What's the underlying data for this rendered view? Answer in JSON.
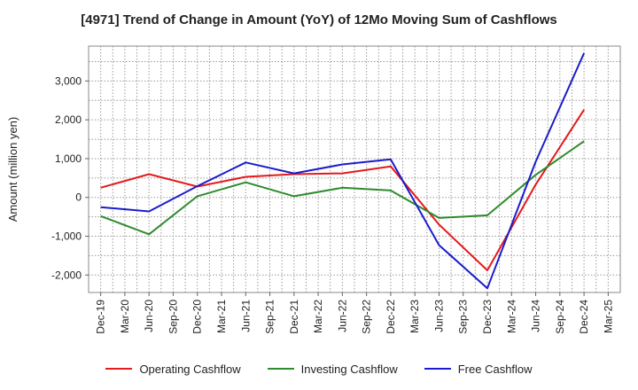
{
  "chart_data": {
    "type": "line",
    "title": "[4971]  Trend of Change in Amount (YoY) of 12Mo Moving Sum of Cashflows",
    "xlabel": "",
    "ylabel": "Amount (million yen)",
    "ylim": [
      -2450,
      3900
    ],
    "yticks": [
      -2000,
      -1000,
      0,
      1000,
      2000,
      3000
    ],
    "ytick_labels": [
      "-2,000",
      "-1,000",
      "0",
      "1,000",
      "2,000",
      "3,000"
    ],
    "x_labels": [
      "Dec-19",
      "Mar-20",
      "Jun-20",
      "Sep-20",
      "Dec-20",
      "Mar-21",
      "Jun-21",
      "Sep-21",
      "Dec-21",
      "Mar-22",
      "Jun-22",
      "Sep-22",
      "Dec-22",
      "Mar-23",
      "Jun-23",
      "Sep-23",
      "Dec-23",
      "Mar-24",
      "Jun-24",
      "Sep-24",
      "Dec-24",
      "Mar-25"
    ],
    "grid": true,
    "series": [
      {
        "name": "Operating Cashflow",
        "color": "#e41a1c",
        "values": [
          250,
          null,
          600,
          null,
          280,
          null,
          530,
          null,
          600,
          null,
          620,
          null,
          800,
          null,
          -700,
          null,
          -1880,
          null,
          330,
          null,
          2260,
          null
        ]
      },
      {
        "name": "Investing Cashflow",
        "color": "#2e8b2e",
        "values": [
          -480,
          null,
          -950,
          null,
          30,
          null,
          390,
          null,
          30,
          null,
          250,
          null,
          180,
          null,
          -530,
          null,
          -460,
          null,
          580,
          null,
          1450,
          null
        ]
      },
      {
        "name": "Free Cashflow",
        "color": "#1c1ccc",
        "values": [
          -250,
          null,
          -360,
          null,
          290,
          null,
          900,
          null,
          620,
          null,
          850,
          null,
          980,
          null,
          -1230,
          null,
          -2340,
          null,
          920,
          null,
          3720,
          null
        ]
      }
    ]
  }
}
